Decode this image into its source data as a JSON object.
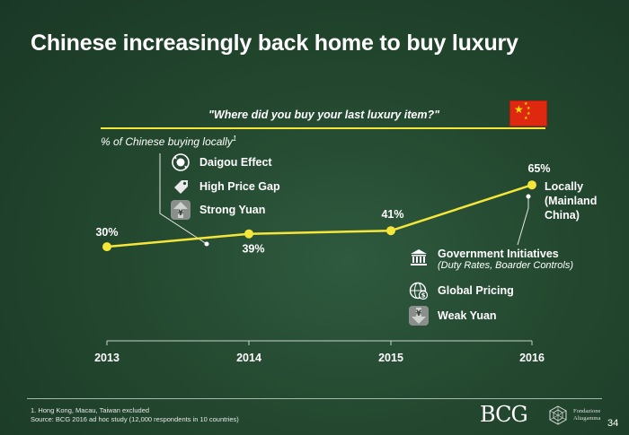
{
  "title": "Chinese increasingly back home to buy luxury",
  "question": "\"Where did you buy your last luxury item?\"",
  "subtitle": "% of Chinese buying locally",
  "subtitle_sup": "1",
  "colors": {
    "line": "#f5e63a",
    "background": "#23482f",
    "flag": "#de2910"
  },
  "factors_left": [
    {
      "label": "Daigou Effect",
      "icon": "recycle-globe-icon"
    },
    {
      "label": "High Price Gap",
      "icon": "price-tag-icon"
    },
    {
      "label": "Strong Yuan",
      "icon": "yuan-up-arrow-icon"
    }
  ],
  "factors_right": [
    {
      "label": "Government Initiatives",
      "sublabel": "(Duty Rates, Boarder Controls)",
      "icon": "government-building-icon"
    },
    {
      "label": "Global Pricing",
      "icon": "globe-dollar-icon"
    },
    {
      "label": "Weak Yuan",
      "icon": "yuan-down-arrow-icon"
    }
  ],
  "series_label": "Locally (Mainland China)",
  "chart_data": {
    "type": "line",
    "x": [
      "2013",
      "2014",
      "2015",
      "2016"
    ],
    "series": [
      {
        "name": "Locally (Mainland China)",
        "values": [
          30,
          39,
          41,
          65
        ]
      }
    ],
    "data_labels": [
      "30%",
      "39%",
      "41%",
      "65%"
    ],
    "xlabel": "",
    "ylabel": "% of Chinese buying locally",
    "grid": false
  },
  "footnote_1": "1. Hong Kong, Macau, Taiwan excluded",
  "footnote_2": "Source: BCG 2016 ad hoc study (12,000 respondents in 10 countries)",
  "logo_bcg": "BCG",
  "logo_partner_line1": "Fondazione",
  "logo_partner_line2": "Altagamma",
  "page_number": "34"
}
